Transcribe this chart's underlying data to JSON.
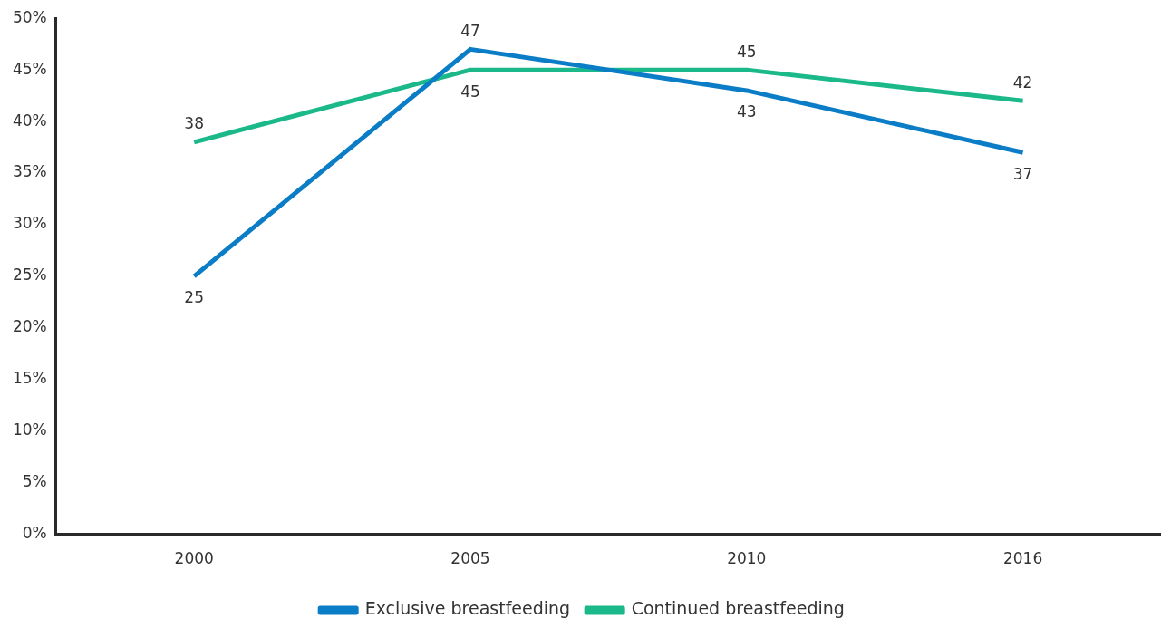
{
  "chart_data": {
    "type": "line",
    "categories": [
      "2000",
      "2005",
      "2010",
      "2016"
    ],
    "series": [
      {
        "name": "Exclusive breastfeeding",
        "color": "#0a7dc6",
        "values": [
          25,
          47,
          43,
          37
        ]
      },
      {
        "name": "Continued breastfeeding",
        "color": "#1bb98a",
        "values": [
          38,
          45,
          45,
          42
        ]
      }
    ],
    "ylim": [
      0,
      50
    ],
    "yticks": [
      {
        "value": 0,
        "label": "0%"
      },
      {
        "value": 5,
        "label": "5%"
      },
      {
        "value": 10,
        "label": "10%"
      },
      {
        "value": 15,
        "label": "15%"
      },
      {
        "value": 20,
        "label": "20%"
      },
      {
        "value": 25,
        "label": "25%"
      },
      {
        "value": 30,
        "label": "30%"
      },
      {
        "value": 35,
        "label": "35%"
      },
      {
        "value": 40,
        "label": "40%"
      },
      {
        "value": 45,
        "label": "45%"
      },
      {
        "value": 50,
        "label": "50%"
      }
    ],
    "data_labels": true,
    "legend": "bottom",
    "marker": "none"
  }
}
